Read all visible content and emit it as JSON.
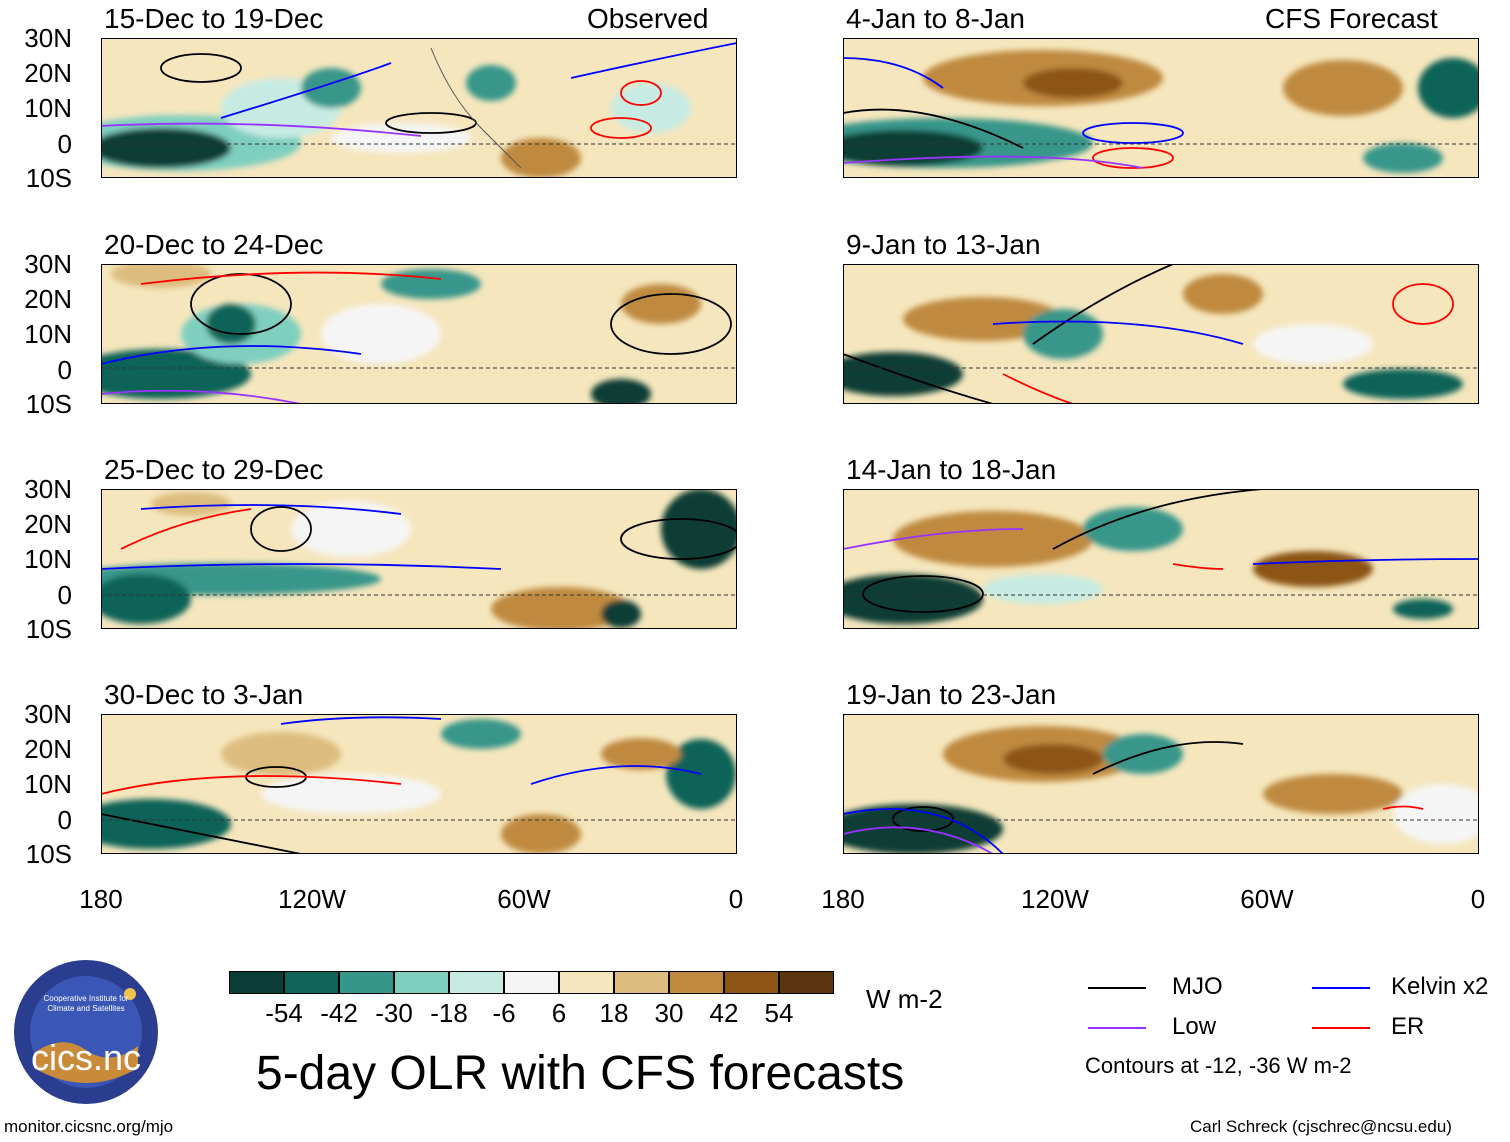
{
  "header": {
    "left_tag": "Observed",
    "right_tag": "CFS Forecast"
  },
  "y_axis": [
    "30N",
    "20N",
    "10N",
    "0",
    "10S"
  ],
  "x_axis": [
    "180",
    "120W",
    "60W",
    "0"
  ],
  "panels": [
    {
      "title": "15-Dec to 19-Dec"
    },
    {
      "title": "20-Dec to 24-Dec"
    },
    {
      "title": "25-Dec to 29-Dec"
    },
    {
      "title": "30-Dec to 3-Jan"
    },
    {
      "title": "4-Jan to 8-Jan"
    },
    {
      "title": "9-Jan to 13-Jan"
    },
    {
      "title": "14-Jan to 18-Jan"
    },
    {
      "title": "19-Jan to 23-Jan"
    }
  ],
  "colorbar": {
    "colors": [
      "#0a3d35",
      "#0f6459",
      "#37968a",
      "#7fcfbf",
      "#c7ebe3",
      "#f5f5f5",
      "#f5e6bd",
      "#ddbd7f",
      "#bf8a3f",
      "#8c5516",
      "#5a3510"
    ],
    "labels": [
      "-54",
      "-42",
      "-30",
      "-18",
      "-6",
      "6",
      "18",
      "30",
      "42",
      "54"
    ],
    "units": "W m-2"
  },
  "legend": {
    "items": [
      {
        "label": "MJO",
        "color": "#000000"
      },
      {
        "label": "Kelvin x2",
        "color": "#0000ff"
      },
      {
        "label": "Low",
        "color": "#9933ff"
      },
      {
        "label": "ER",
        "color": "#ff0000"
      }
    ],
    "note": "Contours at -12, -36 W m-2"
  },
  "logo": {
    "text": "cics.nc",
    "ring_text": "Cooperative Institute for Climate and Satellites"
  },
  "main_title": "5-day OLR with CFS forecasts",
  "footer": {
    "left": "monitor.cicsnc.org/mjo",
    "right": "Carl Schreck (cjschrec@ncsu.edu)"
  }
}
